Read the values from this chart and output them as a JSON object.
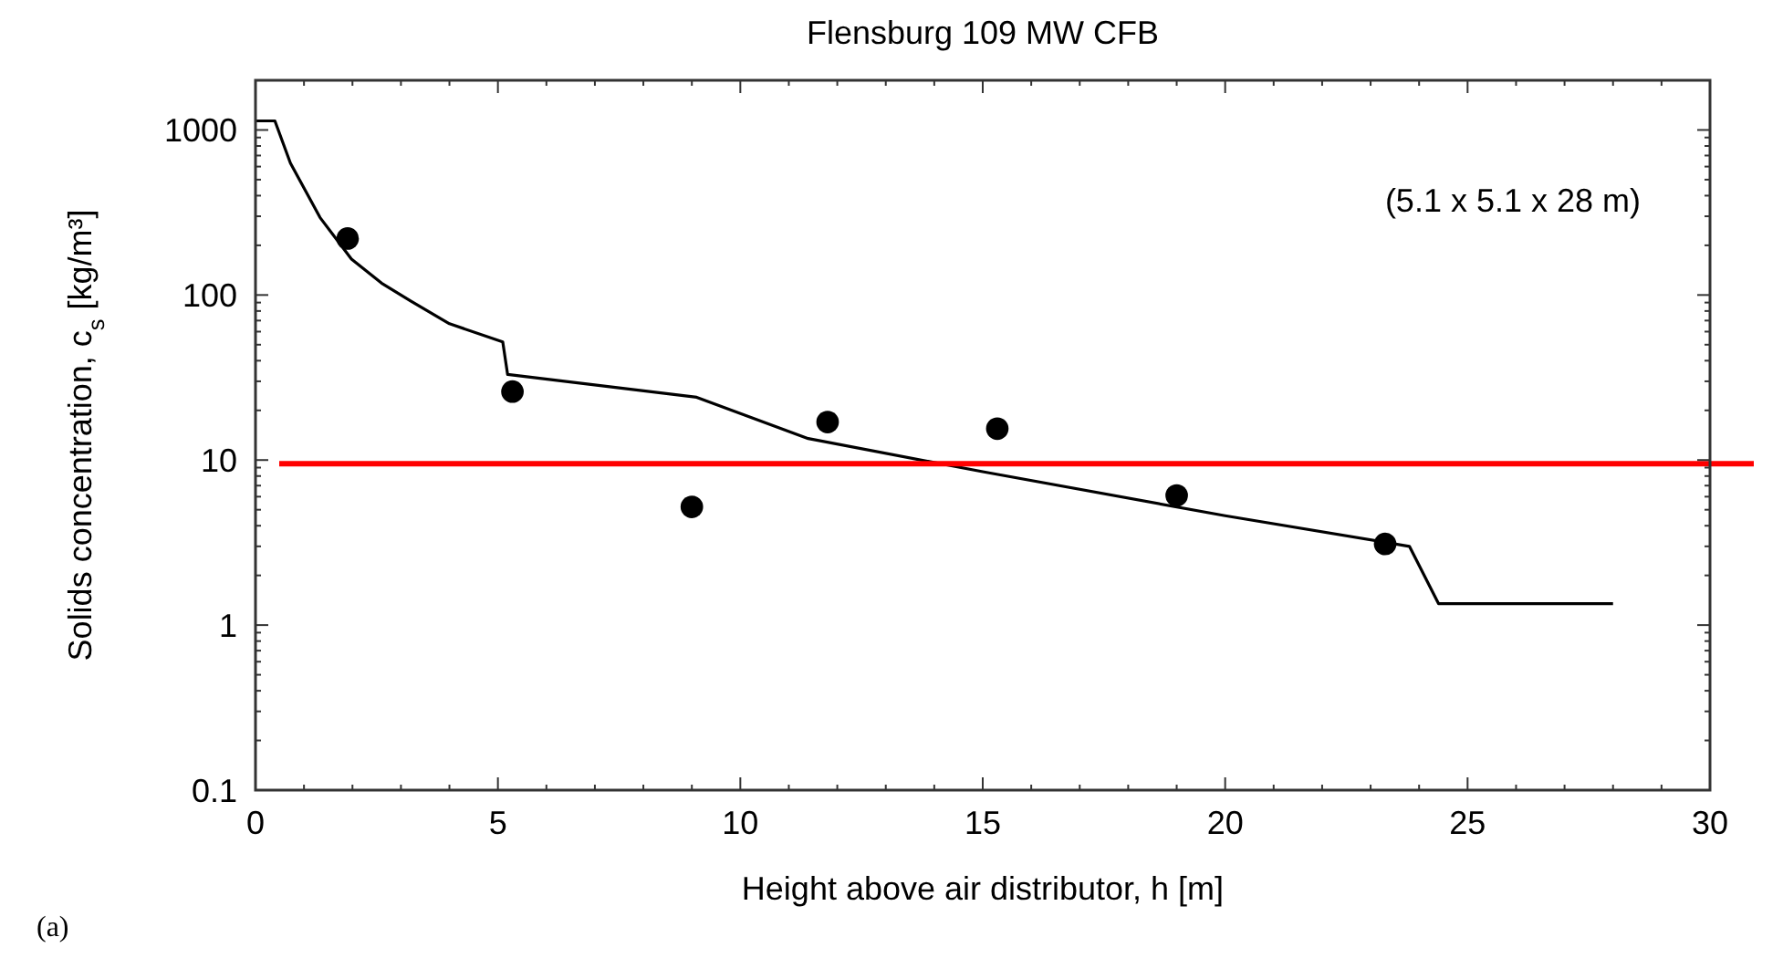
{
  "chart_data": {
    "type": "line",
    "title": "Flensburg 109 MW CFB",
    "xlabel": "Height above air distributor, h [m]",
    "ylabel": "Solids concentration, c$_{s}$ [kg/m³]",
    "log": "y",
    "xlim": [
      0,
      30
    ],
    "xticks": [
      0,
      5,
      10,
      15,
      20,
      25,
      30
    ],
    "ylim": [
      0.1,
      2000
    ],
    "yticks": [
      0.1,
      1,
      10,
      100,
      1000
    ],
    "grid": false,
    "series": [
      {
        "color": "#000000",
        "x": [
          0,
          0.4,
          0.72,
          1.33,
          1.98,
          2.6,
          3.2,
          4.0,
          5.1,
          5.2,
          9.1,
          11.4,
          15,
          20,
          23.8,
          24.4,
          28
        ],
        "values": [
          1135,
          1135,
          630,
          295,
          165,
          118,
          92,
          67,
          52,
          33,
          24,
          13.5,
          8.5,
          4.6,
          3.0,
          1.35,
          1.35
        ]
      },
      {
        "type": "scatter",
        "color": "#000000",
        "marker": "circle",
        "x": [
          1.9,
          5.3,
          9.0,
          11.8,
          15.3,
          19.0,
          23.3
        ],
        "values": [
          220,
          26,
          5.2,
          17,
          15.5,
          6.1,
          3.1
        ]
      }
    ],
    "ref_lines": [
      {
        "axis": "y",
        "value": 9.5,
        "color": "#ff0000"
      }
    ],
    "annotations": [
      "(5.1 x 5.1 x 28 m)",
      "(a)"
    ]
  }
}
